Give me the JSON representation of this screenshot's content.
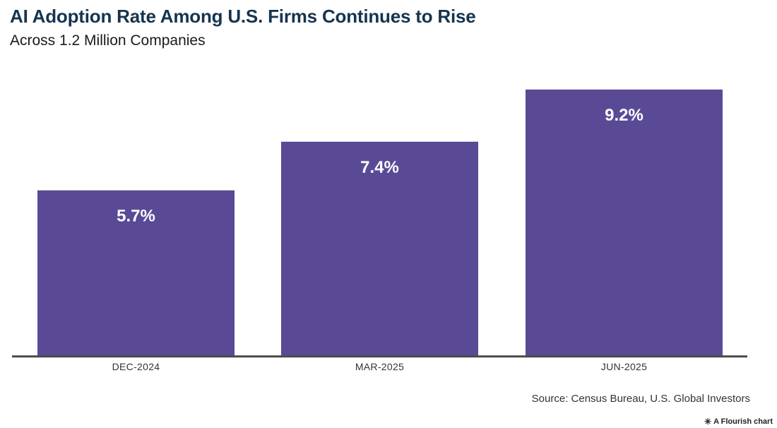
{
  "header": {
    "title": "AI Adoption Rate Among U.S. Firms Continues to Rise",
    "subtitle": "Across 1.2 Million Companies"
  },
  "chart_data": {
    "type": "bar",
    "title": "AI Adoption Rate Among U.S. Firms Continues to Rise",
    "subtitle": "Across 1.2 Million Companies",
    "categories": [
      "DEC-2024",
      "MAR-2025",
      "JUN-2025"
    ],
    "values": [
      5.7,
      7.4,
      9.2
    ],
    "value_labels": [
      "5.7%",
      "7.4%",
      "9.2%"
    ],
    "xlabel": "",
    "ylabel": "",
    "ylim": [
      0,
      9.2
    ],
    "grid": false,
    "legend_position": "none",
    "value_labels_position": "inside-top",
    "bar_color": "#5a4a96"
  },
  "footer": {
    "source": "Source: Census Bureau, U.S. Global Investors",
    "flourish_badge": "A Flourish chart",
    "badge_icon_glyph": "✳"
  },
  "colors": {
    "background": "#ffffff",
    "title-color": "#16344f",
    "subtitle-color": "#1a1a1a",
    "bar-color": "#5a4a96",
    "axis-line-color": "#4d4d4d",
    "axis-label-color": "#333333",
    "value-label-color": "#ffffff",
    "source-color": "#333333",
    "badge-color": "#222222"
  }
}
